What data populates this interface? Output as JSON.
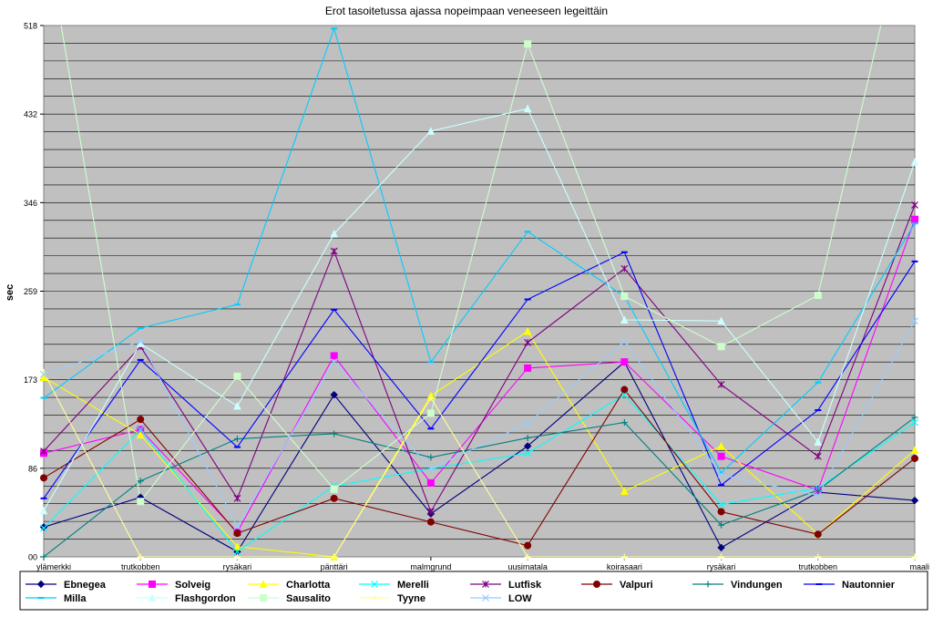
{
  "chart_data": {
    "type": "line",
    "title": "Erot tasoitetussa ajassa nopeimpaan veneeseen legeittäin",
    "xlabel": "",
    "ylabel": "sec",
    "ylim": [
      0,
      518
    ],
    "yticks": [
      "00",
      "86",
      "173",
      "259",
      "346",
      "432",
      "518"
    ],
    "grid": true,
    "legend_position": "bottom",
    "categories": [
      "ylämerkki",
      "trutkobben",
      "rysäkari",
      "pänttäri",
      "malmgrund",
      "uusimatala",
      "koirasaari",
      "rysäkari",
      "trutkobben",
      "maali"
    ],
    "series": [
      {
        "name": "Ebnegea",
        "color": "#000080",
        "marker": "diamond",
        "values": [
          29,
          58,
          5,
          158,
          42,
          108,
          190,
          9,
          63,
          55
        ]
      },
      {
        "name": "Solveig",
        "color": "#ff00ff",
        "marker": "square",
        "values": [
          101,
          124,
          24,
          196,
          72,
          184,
          190,
          98,
          65,
          329
        ]
      },
      {
        "name": "Charlotta",
        "color": "#ffff00",
        "marker": "triangle",
        "values": [
          175,
          119,
          10,
          0,
          157,
          220,
          64,
          108,
          22,
          104
        ]
      },
      {
        "name": "Merelli",
        "color": "#00ffff",
        "marker": "x",
        "values": [
          28,
          124,
          5,
          69,
          86,
          101,
          158,
          51,
          67,
          131
        ]
      },
      {
        "name": "Lutfisk",
        "color": "#800080",
        "marker": "star",
        "values": [
          103,
          205,
          57,
          298,
          44,
          209,
          281,
          168,
          98,
          343
        ]
      },
      {
        "name": "Valpuri",
        "color": "#800000",
        "marker": "circle",
        "values": [
          77,
          134,
          23,
          57,
          34,
          11,
          163,
          44,
          22,
          96
        ]
      },
      {
        "name": "Vindungen",
        "color": "#008080",
        "marker": "plus",
        "values": [
          0,
          74,
          115,
          120,
          97,
          116,
          131,
          31,
          65,
          136
        ]
      },
      {
        "name": "Nautonnier",
        "color": "#0000ff",
        "marker": "dash",
        "values": [
          57,
          192,
          107,
          241,
          125,
          251,
          297,
          70,
          143,
          288
        ]
      },
      {
        "name": "Milla",
        "color": "#00ccff",
        "marker": "dash",
        "values": [
          155,
          223,
          246,
          515,
          190,
          317,
          254,
          82,
          170,
          325
        ]
      },
      {
        "name": "Flashgordon",
        "color": "#ccffff",
        "marker": "triangle",
        "values": [
          45,
          208,
          147,
          315,
          415,
          437,
          231,
          230,
          112,
          385
        ]
      },
      {
        "name": "Sausalito",
        "color": "#ccffcc",
        "marker": "square",
        "values": [
          620,
          54,
          176,
          66,
          140,
          500,
          254,
          205,
          255,
          660
        ]
      },
      {
        "name": "Tyyne",
        "color": "#ffff99",
        "marker": "plus",
        "values": [
          180,
          0,
          0,
          0,
          155,
          0,
          0,
          0,
          0,
          0
        ]
      },
      {
        "name": "LOW",
        "color": "#99ccff",
        "marker": "x",
        "values": [
          178,
          210,
          30,
          190,
          86,
          130,
          210,
          80,
          60,
          230
        ]
      }
    ]
  }
}
